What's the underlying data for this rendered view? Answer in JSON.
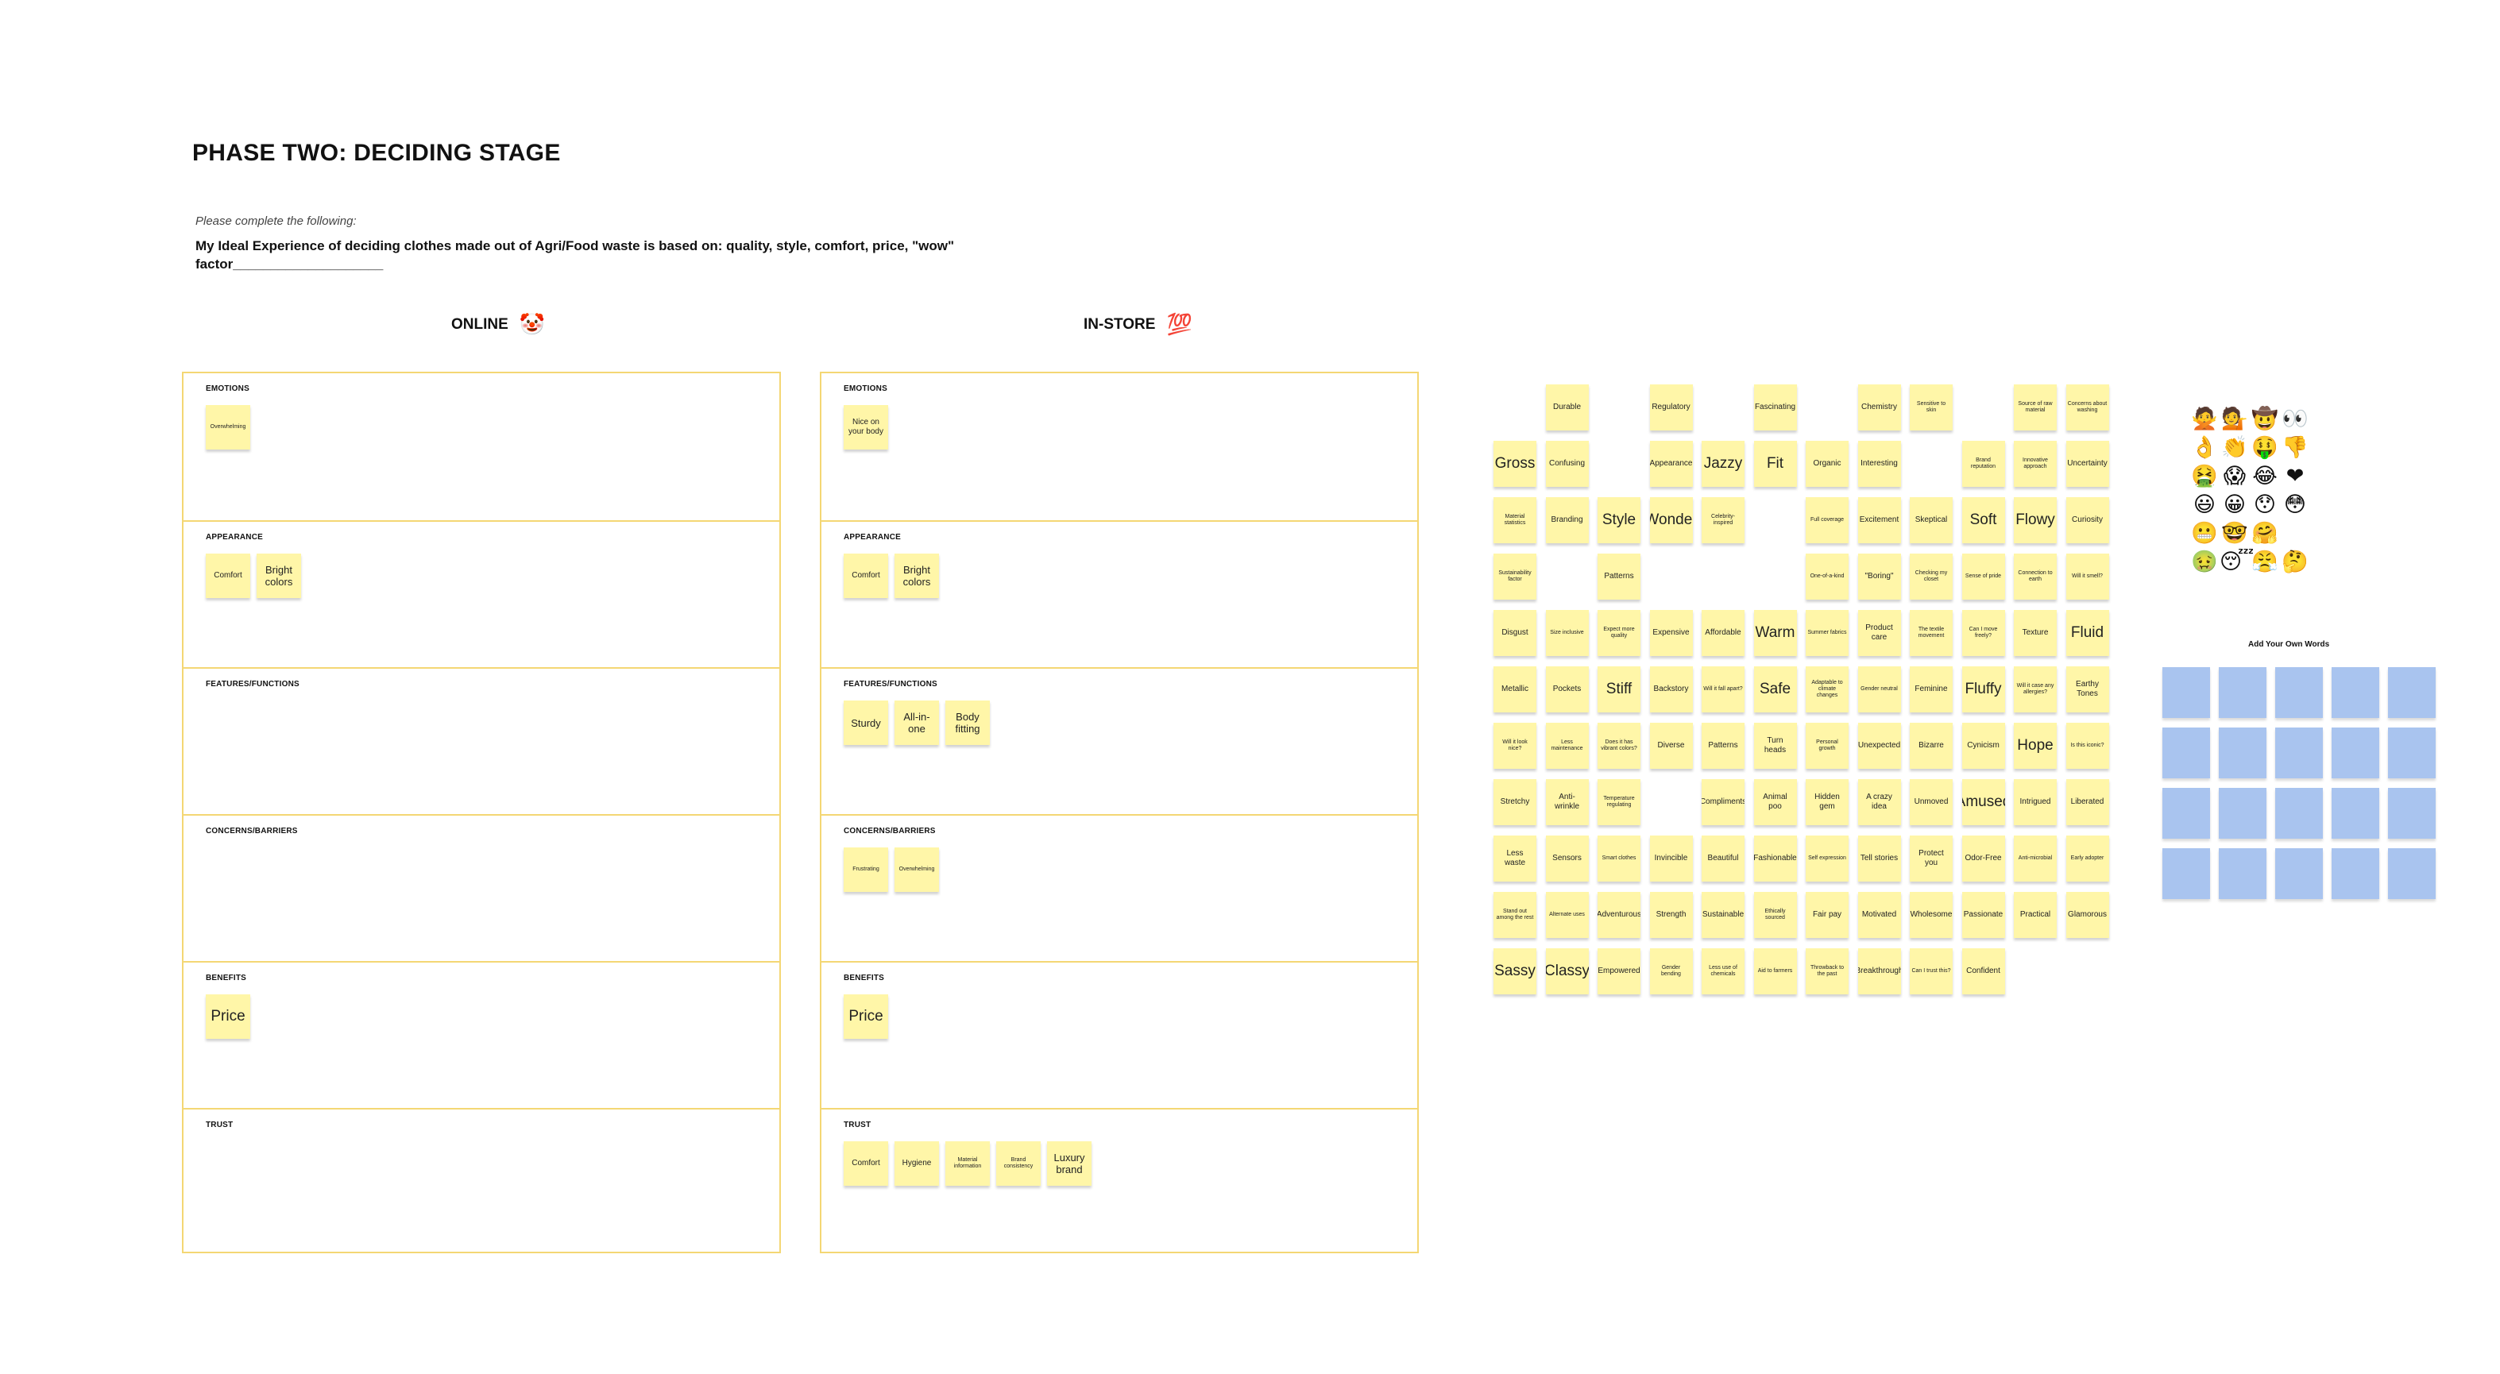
{
  "title": "PHASE TWO: DECIDING STAGE",
  "instructions": "Please complete the following:",
  "ideal_prefix": "My Ideal Experience of deciding clothes made out of Agri/Food waste is based on: quality, style, comfort, price, \"wow\" factor____________________",
  "colors": {
    "sticky_yellow": "#fff6a8",
    "board_border": "#f4d774",
    "sticky_blue": "#a9c4ef"
  },
  "online": {
    "heading": "ONLINE",
    "heading_icon": "🤡",
    "sections": [
      {
        "label": "EMOTIONS",
        "notes": [
          {
            "text": "Overwhelming",
            "size": "small"
          }
        ]
      },
      {
        "label": "APPEARANCE",
        "notes": [
          {
            "text": "Comfort",
            "size": "mid"
          },
          {
            "text": "Bright colors",
            "size": "normal"
          }
        ]
      },
      {
        "label": "FEATURES/FUNCTIONS",
        "notes": []
      },
      {
        "label": "CONCERNS/BARRIERS",
        "notes": []
      },
      {
        "label": "BENEFITS",
        "notes": [
          {
            "text": "Price",
            "size": "big"
          }
        ]
      },
      {
        "label": "TRUST",
        "notes": []
      }
    ]
  },
  "instore": {
    "heading": "IN-STORE",
    "heading_icon": "💯",
    "sections": [
      {
        "label": "EMOTIONS",
        "notes": [
          {
            "text": "Nice on your body",
            "size": "mid"
          }
        ]
      },
      {
        "label": "APPEARANCE",
        "notes": [
          {
            "text": "Comfort",
            "size": "mid"
          },
          {
            "text": "Bright colors",
            "size": "normal"
          }
        ]
      },
      {
        "label": "FEATURES/FUNCTIONS",
        "notes": [
          {
            "text": "Sturdy",
            "size": "normal"
          },
          {
            "text": "All-in-one",
            "size": "normal"
          },
          {
            "text": "Body fitting",
            "size": "normal"
          }
        ]
      },
      {
        "label": "CONCERNS/BARRIERS",
        "notes": [
          {
            "text": "Frustrating",
            "size": "small"
          },
          {
            "text": "Overwhelming",
            "size": "small"
          }
        ]
      },
      {
        "label": "BENEFITS",
        "notes": [
          {
            "text": "Price",
            "size": "big"
          }
        ]
      },
      {
        "label": "TRUST",
        "notes": [
          {
            "text": "Comfort",
            "size": "mid"
          },
          {
            "text": "Hygiene",
            "size": "mid"
          },
          {
            "text": "Material information",
            "size": "small"
          },
          {
            "text": "Brand consistency",
            "size": "small"
          },
          {
            "text": "Luxury brand",
            "size": "normal"
          }
        ]
      }
    ]
  },
  "word_bank": [
    [
      "",
      "Durable",
      "",
      "Regulatory",
      "",
      "Fascinating",
      "",
      "Chemistry",
      "Sensitive to skin",
      "",
      "Source of raw material",
      "Concerns about washing"
    ],
    [
      "Gross",
      "Confusing",
      "",
      "Appearance",
      "Jazzy",
      "Fit",
      "Organic",
      "Interesting",
      "",
      "Brand reputation",
      "Innovative approach",
      "Uncertainty"
    ],
    [
      "Material statistics",
      "Branding",
      "Style",
      "Wonder",
      "Celebrity-inspired",
      "",
      "Full coverage",
      "Excitement",
      "Skeptical",
      "Soft",
      "Flowy",
      "Curiosity"
    ],
    [
      "Sustainability factor",
      "",
      "Patterns",
      "",
      "",
      "",
      "One-of-a-kind",
      "\"Boring\"",
      "Checking my closet",
      "Sense of pride",
      "Connection to earth",
      "Will it smell?"
    ],
    [
      "Disgust",
      "Size inclusive",
      "Expect more quality",
      "Expensive",
      "Affordable",
      "Warm",
      "Summer fabrics",
      "Product care",
      "The textile movement",
      "Can I move freely?",
      "Texture",
      "Fluid"
    ],
    [
      "Metallic",
      "Pockets",
      "Stiff",
      "Backstory",
      "Will it fall apart?",
      "Safe",
      "Adaptable to climate changes",
      "Gender neutral",
      "Feminine",
      "Fluffy",
      "Will it case any allergies?",
      "Earthy Tones"
    ],
    [
      "Will it look nice?",
      "Less maintenance",
      "Does it has vibrant colors?",
      "Diverse",
      "Patterns",
      "Turn heads",
      "Personal growth",
      "Unexpected",
      "Bizarre",
      "Cynicism",
      "Hope",
      "Is this iconic?"
    ],
    [
      "Stretchy",
      "Anti-wrinkle",
      "Temperature regulating",
      "",
      "Compliments",
      "Animal poo",
      "Hidden gem",
      "A crazy idea",
      "Unmoved",
      "Amused",
      "Intrigued",
      "Liberated"
    ],
    [
      "Less waste",
      "Sensors",
      "Smart clothes",
      "Invincible",
      "Beautiful",
      "Fashionable",
      "Self expression",
      "Tell stories",
      "Protect you",
      "Odor-Free",
      "Anti-microbial",
      "Early adopter"
    ],
    [
      "Stand out among the rest",
      "Alternate uses",
      "Adventurous",
      "Strength",
      "Sustainable",
      "Ethically sourced",
      "Fair pay",
      "Motivated",
      "Wholesome",
      "Passionate",
      "Practical",
      "Glamorous"
    ],
    [
      "Sassy",
      "Classy",
      "Empowered",
      "Gender bending",
      "Less use of chemicals",
      "Aid to farmers",
      "Throwback to the past",
      "Breakthrough",
      "Can I trust this?",
      "Confident",
      "",
      ""
    ]
  ],
  "emoji_palette": [
    "🙅",
    "💁",
    "🤠",
    "👀",
    "👌",
    "👏",
    "🤑",
    "👎",
    "🤮",
    "😱",
    "😂",
    "❤",
    "😃",
    "😀",
    "😯",
    "😳",
    "😬",
    "🤓",
    "🤗",
    "",
    "🤢",
    "😴",
    "😤",
    "🤔"
  ],
  "own_words": {
    "label": "Add Your Own Words",
    "blank_count": 20
  }
}
